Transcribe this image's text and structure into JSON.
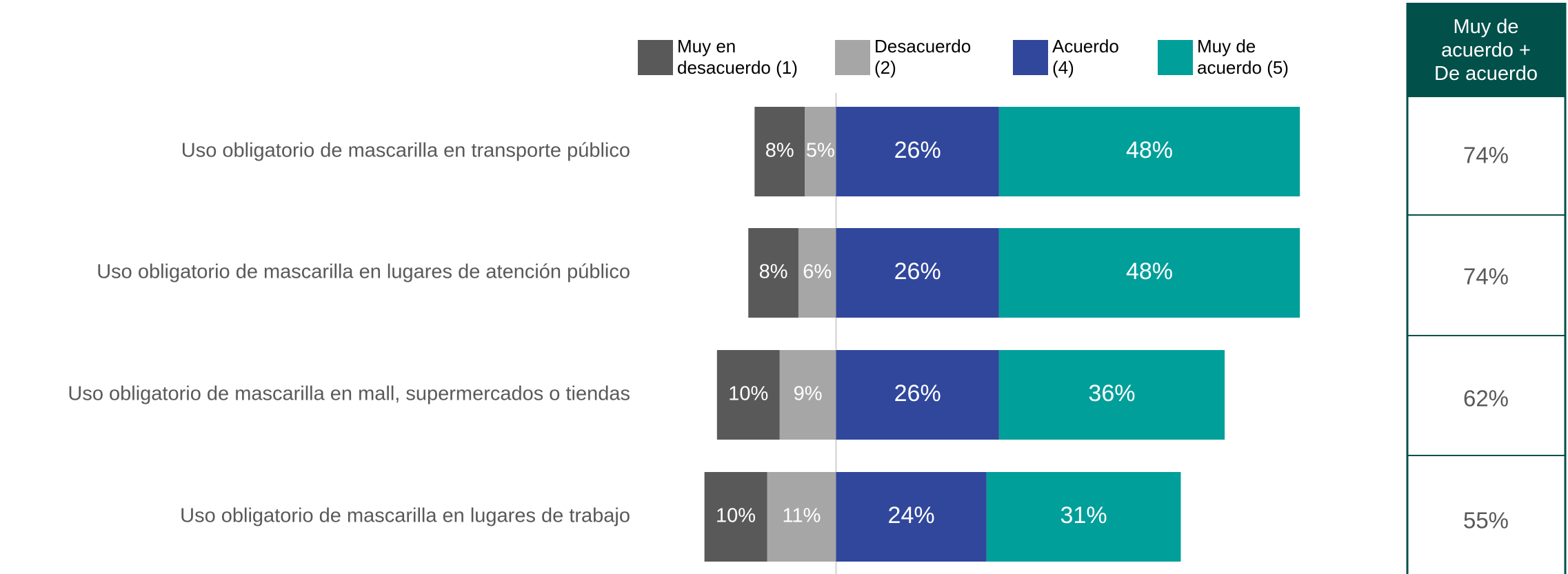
{
  "chart_data": {
    "type": "diverging-bar",
    "categories": [
      "Uso obligatorio de mascarilla en transporte público",
      "Uso obligatorio de mascarilla en lugares de atención público",
      "Uso obligatorio de mascarilla en mall, supermercados o tiendas",
      "Uso obligatorio de mascarilla en lugares de trabajo"
    ],
    "series": [
      {
        "name": "Muy en desacuerdo (1)",
        "color": "#595959",
        "values": [
          8,
          8,
          10,
          10
        ],
        "value_labels": [
          "8%",
          "8%",
          "10%",
          "10%"
        ]
      },
      {
        "name": "Desacuerdo (2)",
        "color": "#a6a6a6",
        "values": [
          5,
          6,
          9,
          11
        ],
        "value_labels": [
          "5%",
          "6%",
          "9%",
          "11%"
        ]
      },
      {
        "name": "Acuerdo (4)",
        "color": "#30479c",
        "values": [
          26,
          26,
          26,
          24
        ],
        "value_labels": [
          "26%",
          "26%",
          "26%",
          "24%"
        ]
      },
      {
        "name": "Muy de acuerdo (5)",
        "color": "#009f9a",
        "values": [
          48,
          48,
          36,
          31
        ],
        "value_labels": [
          "48%",
          "48%",
          "36%",
          "31%"
        ]
      }
    ],
    "totals": {
      "title": "Muy de acuerdo + De acuerdo",
      "values": [
        74,
        74,
        62,
        55
      ],
      "value_labels": [
        "74%",
        "74%",
        "62%",
        "55%"
      ]
    }
  }
}
